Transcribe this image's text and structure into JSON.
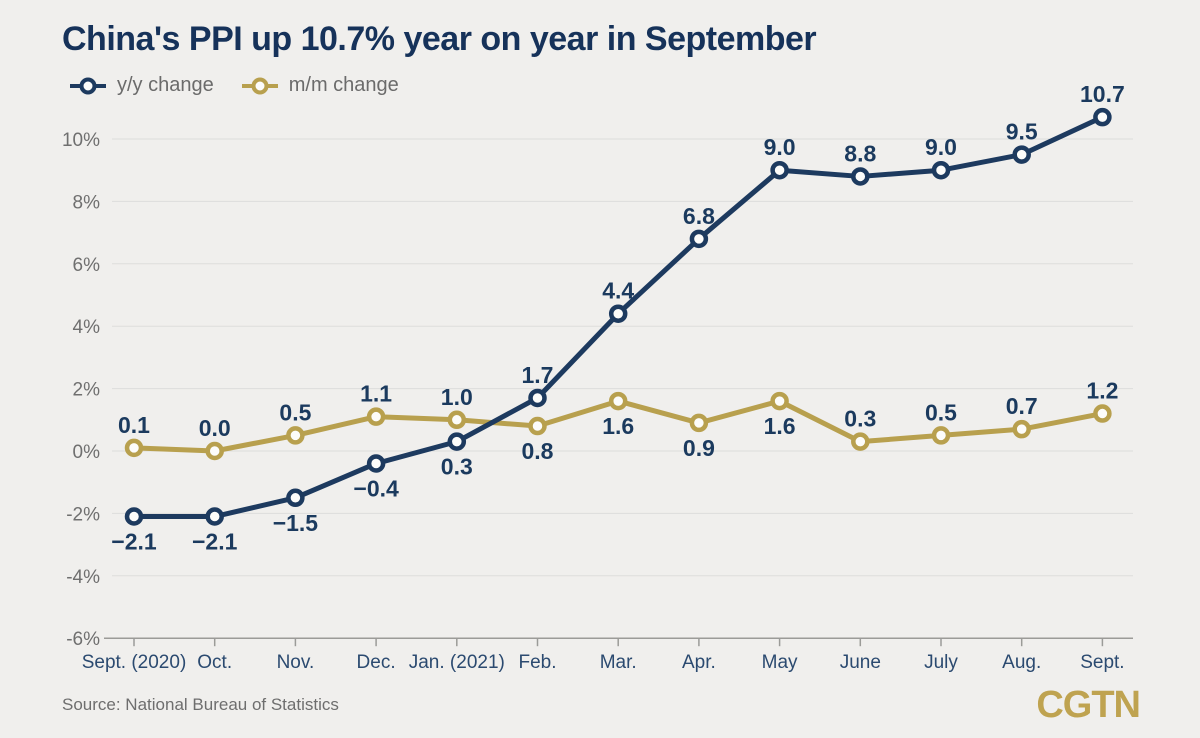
{
  "branding": {
    "logo_text": "CGTN"
  },
  "colors": {
    "background": "#f0efed",
    "navy": "#1d3a5f",
    "gold": "#b8a04e",
    "title_navy": "#16325a",
    "label_navy": "#1b3a5e",
    "xtick_navy": "#2b4a70",
    "tick_gray": "#6f6f6f",
    "legend_gray": "#6b6b6b",
    "source_gray": "#6e6e6e",
    "grid": "#dddddb",
    "axis": "#9b9b98",
    "logo_gold": "#bfa350",
    "marker_fill": "#fcfcfa"
  },
  "chart_data": {
    "type": "line",
    "title": "China's PPI up 10.7% year on year in September",
    "source": "Source: National Bureau of Statistics",
    "grid": true,
    "legend_position": "top-left",
    "categories": [
      "Sept. (2020)",
      "Oct.",
      "Nov.",
      "Dec.",
      "Jan. (2021)",
      "Feb.",
      "Mar.",
      "Apr.",
      "May",
      "June",
      "July",
      "Aug.",
      "Sept."
    ],
    "series": [
      {
        "name": "y/y change",
        "color": "#1d3a5f",
        "values": [
          -2.1,
          -2.1,
          -1.5,
          -0.4,
          0.3,
          1.7,
          4.4,
          6.8,
          9.0,
          8.8,
          9.0,
          9.5,
          10.7
        ],
        "label_positions": [
          "below",
          "below",
          "below",
          "below",
          "below",
          "above",
          "above",
          "above",
          "above",
          "above",
          "above",
          "above",
          "above"
        ]
      },
      {
        "name": "m/m change",
        "color": "#b8a04e",
        "values": [
          0.1,
          0.0,
          0.5,
          1.1,
          1.0,
          0.8,
          1.6,
          0.9,
          1.6,
          0.3,
          0.5,
          0.7,
          1.2
        ],
        "label_positions": [
          "above",
          "above",
          "above",
          "above",
          "above",
          "below",
          "below",
          "below",
          "below",
          "above",
          "above",
          "above",
          "above"
        ]
      }
    ],
    "y_axis": {
      "unit": "%",
      "ylim": [
        -6,
        11
      ],
      "tick_values": [
        10,
        8,
        6,
        4,
        2,
        0,
        -2,
        -4,
        -6
      ],
      "tick_labels": [
        "10%",
        "8%",
        "6%",
        "4%",
        "2%",
        "0%",
        "-2%",
        "-4%",
        "-6%"
      ]
    }
  }
}
